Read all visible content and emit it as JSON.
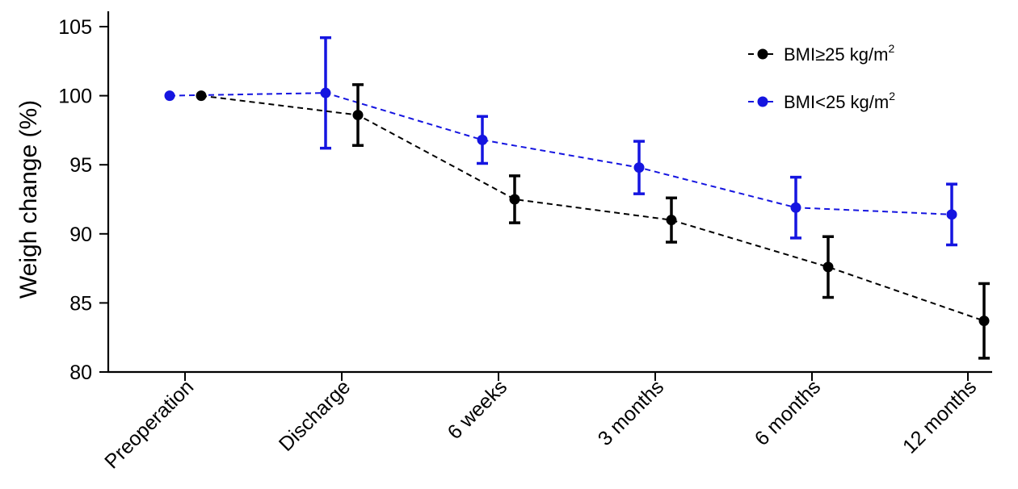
{
  "chart_data": {
    "type": "line",
    "title": "",
    "xlabel": "",
    "ylabel": "Weigh change (%)",
    "categories": [
      "Preoperation",
      "Discharge",
      "6 weeks",
      "3 months",
      "6 months",
      "12 months"
    ],
    "ylim": [
      80,
      106
    ],
    "yticks": [
      80,
      85,
      90,
      95,
      100,
      105
    ],
    "grid": false,
    "legend_position": "top-right",
    "series": [
      {
        "name_main": "BMI≥25 kg/m",
        "name_sup": "2",
        "color": "#000000",
        "values": [
          100,
          98.6,
          92.5,
          91.0,
          87.6,
          83.7
        ],
        "error_low": [
          100,
          96.4,
          90.8,
          89.4,
          85.4,
          81.0
        ],
        "error_high": [
          100,
          100.8,
          94.2,
          92.6,
          89.8,
          86.4
        ]
      },
      {
        "name_main": "BMI<25 kg/m",
        "name_sup": "2",
        "color": "#1515e0",
        "values": [
          100,
          100.2,
          96.8,
          94.8,
          91.9,
          91.4
        ],
        "error_low": [
          100,
          96.2,
          95.1,
          92.9,
          89.7,
          89.2
        ],
        "error_high": [
          100,
          104.2,
          98.5,
          96.7,
          94.1,
          93.6
        ]
      }
    ]
  }
}
